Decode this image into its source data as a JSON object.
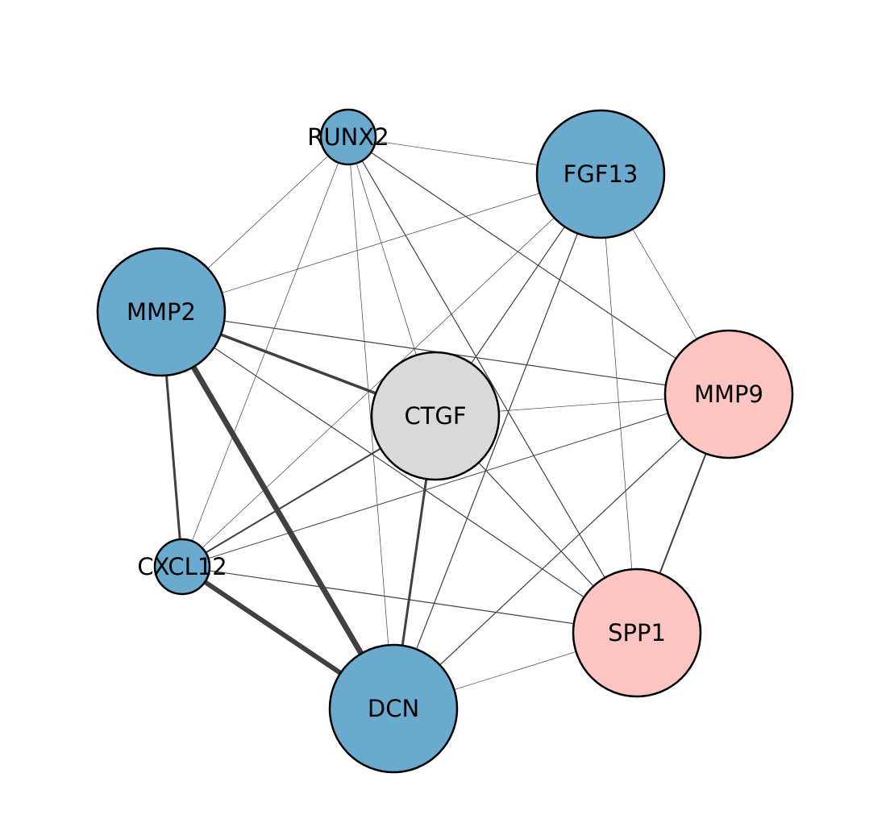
{
  "colors": {
    "blue": "#6aaacf",
    "pink": "#fcc5c2",
    "gray": "#d9d9d9",
    "edge": "#404040",
    "outline": "#000000"
  },
  "nodes": [
    {
      "id": "RUNX2",
      "label": "RUNX2",
      "group": "blue"
    },
    {
      "id": "FGF13",
      "label": "FGF13",
      "group": "blue"
    },
    {
      "id": "MMP2",
      "label": "MMP2",
      "group": "blue"
    },
    {
      "id": "CTGF",
      "label": "CTGF",
      "group": "gray"
    },
    {
      "id": "MMP9",
      "label": "MMP9",
      "group": "pink"
    },
    {
      "id": "CXCL12",
      "label": "CXCL12",
      "group": "blue"
    },
    {
      "id": "SPP1",
      "label": "SPP1",
      "group": "pink"
    },
    {
      "id": "DCN",
      "label": "DCN",
      "group": "blue"
    }
  ],
  "edges": [
    {
      "source": "MMP2",
      "target": "DCN",
      "weight": 7
    },
    {
      "source": "CXCL12",
      "target": "DCN",
      "weight": 6
    },
    {
      "source": "MMP2",
      "target": "CTGF",
      "weight": 3.5
    },
    {
      "source": "MMP2",
      "target": "CXCL12",
      "weight": 3
    },
    {
      "source": "CTGF",
      "target": "DCN",
      "weight": 3
    },
    {
      "source": "MMP9",
      "target": "SPP1",
      "weight": 2
    },
    {
      "source": "CTGF",
      "target": "CXCL12",
      "weight": 2
    },
    {
      "source": "RUNX2",
      "target": "SPP1",
      "weight": 1.2
    },
    {
      "source": "RUNX2",
      "target": "MMP9",
      "weight": 1.2
    },
    {
      "source": "MMP2",
      "target": "MMP9",
      "weight": 1.2
    },
    {
      "source": "MMP2",
      "target": "SPP1",
      "weight": 1.2
    },
    {
      "source": "CXCL12",
      "target": "SPP1",
      "weight": 1.2
    },
    {
      "source": "CTGF",
      "target": "SPP1",
      "weight": 1.2
    },
    {
      "source": "MMP9",
      "target": "DCN",
      "weight": 1.2
    },
    {
      "source": "FGF13",
      "target": "CTGF",
      "weight": 1.2
    },
    {
      "source": "FGF13",
      "target": "DCN",
      "weight": 1.2
    },
    {
      "source": "MMP9",
      "target": "CXCL12",
      "weight": 1
    },
    {
      "source": "RUNX2",
      "target": "FGF13",
      "weight": 0.7
    },
    {
      "source": "RUNX2",
      "target": "MMP2",
      "weight": 0.7
    },
    {
      "source": "RUNX2",
      "target": "CTGF",
      "weight": 0.7
    },
    {
      "source": "RUNX2",
      "target": "CXCL12",
      "weight": 0.7
    },
    {
      "source": "RUNX2",
      "target": "DCN",
      "weight": 0.7
    },
    {
      "source": "FGF13",
      "target": "MMP2",
      "weight": 0.7
    },
    {
      "source": "FGF13",
      "target": "MMP9",
      "weight": 0.7
    },
    {
      "source": "FGF13",
      "target": "SPP1",
      "weight": 0.7
    },
    {
      "source": "FGF13",
      "target": "CXCL12",
      "weight": 0.7
    },
    {
      "source": "CTGF",
      "target": "MMP9",
      "weight": 0.7
    },
    {
      "source": "SPP1",
      "target": "DCN",
      "weight": 0.7
    }
  ]
}
